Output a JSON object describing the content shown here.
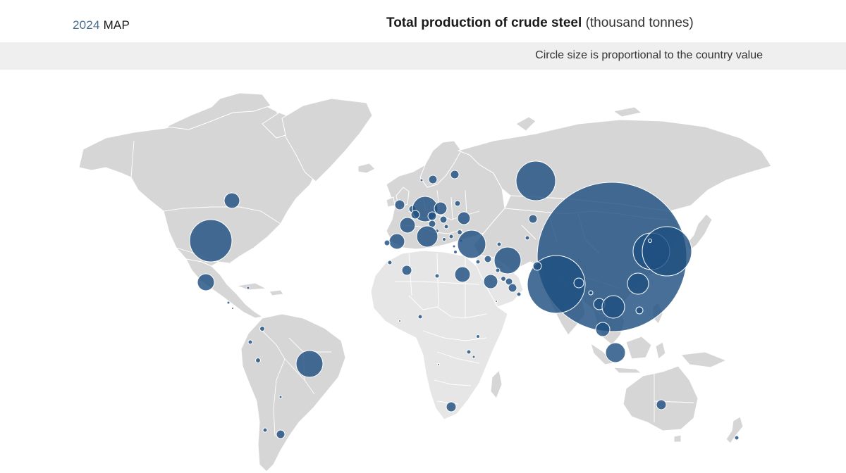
{
  "header": {
    "year": "2024",
    "map_word": "MAP",
    "title_main": "Total production of crude steel",
    "title_unit": "(thousand tonnes)"
  },
  "subbar": {
    "note": "Circle size is proportional to the country value"
  },
  "colors": {
    "bubble": "#1f4f80",
    "land": "#d6d6d6",
    "land_light": "#e6e6e6",
    "bar": "#efefef"
  }
}
